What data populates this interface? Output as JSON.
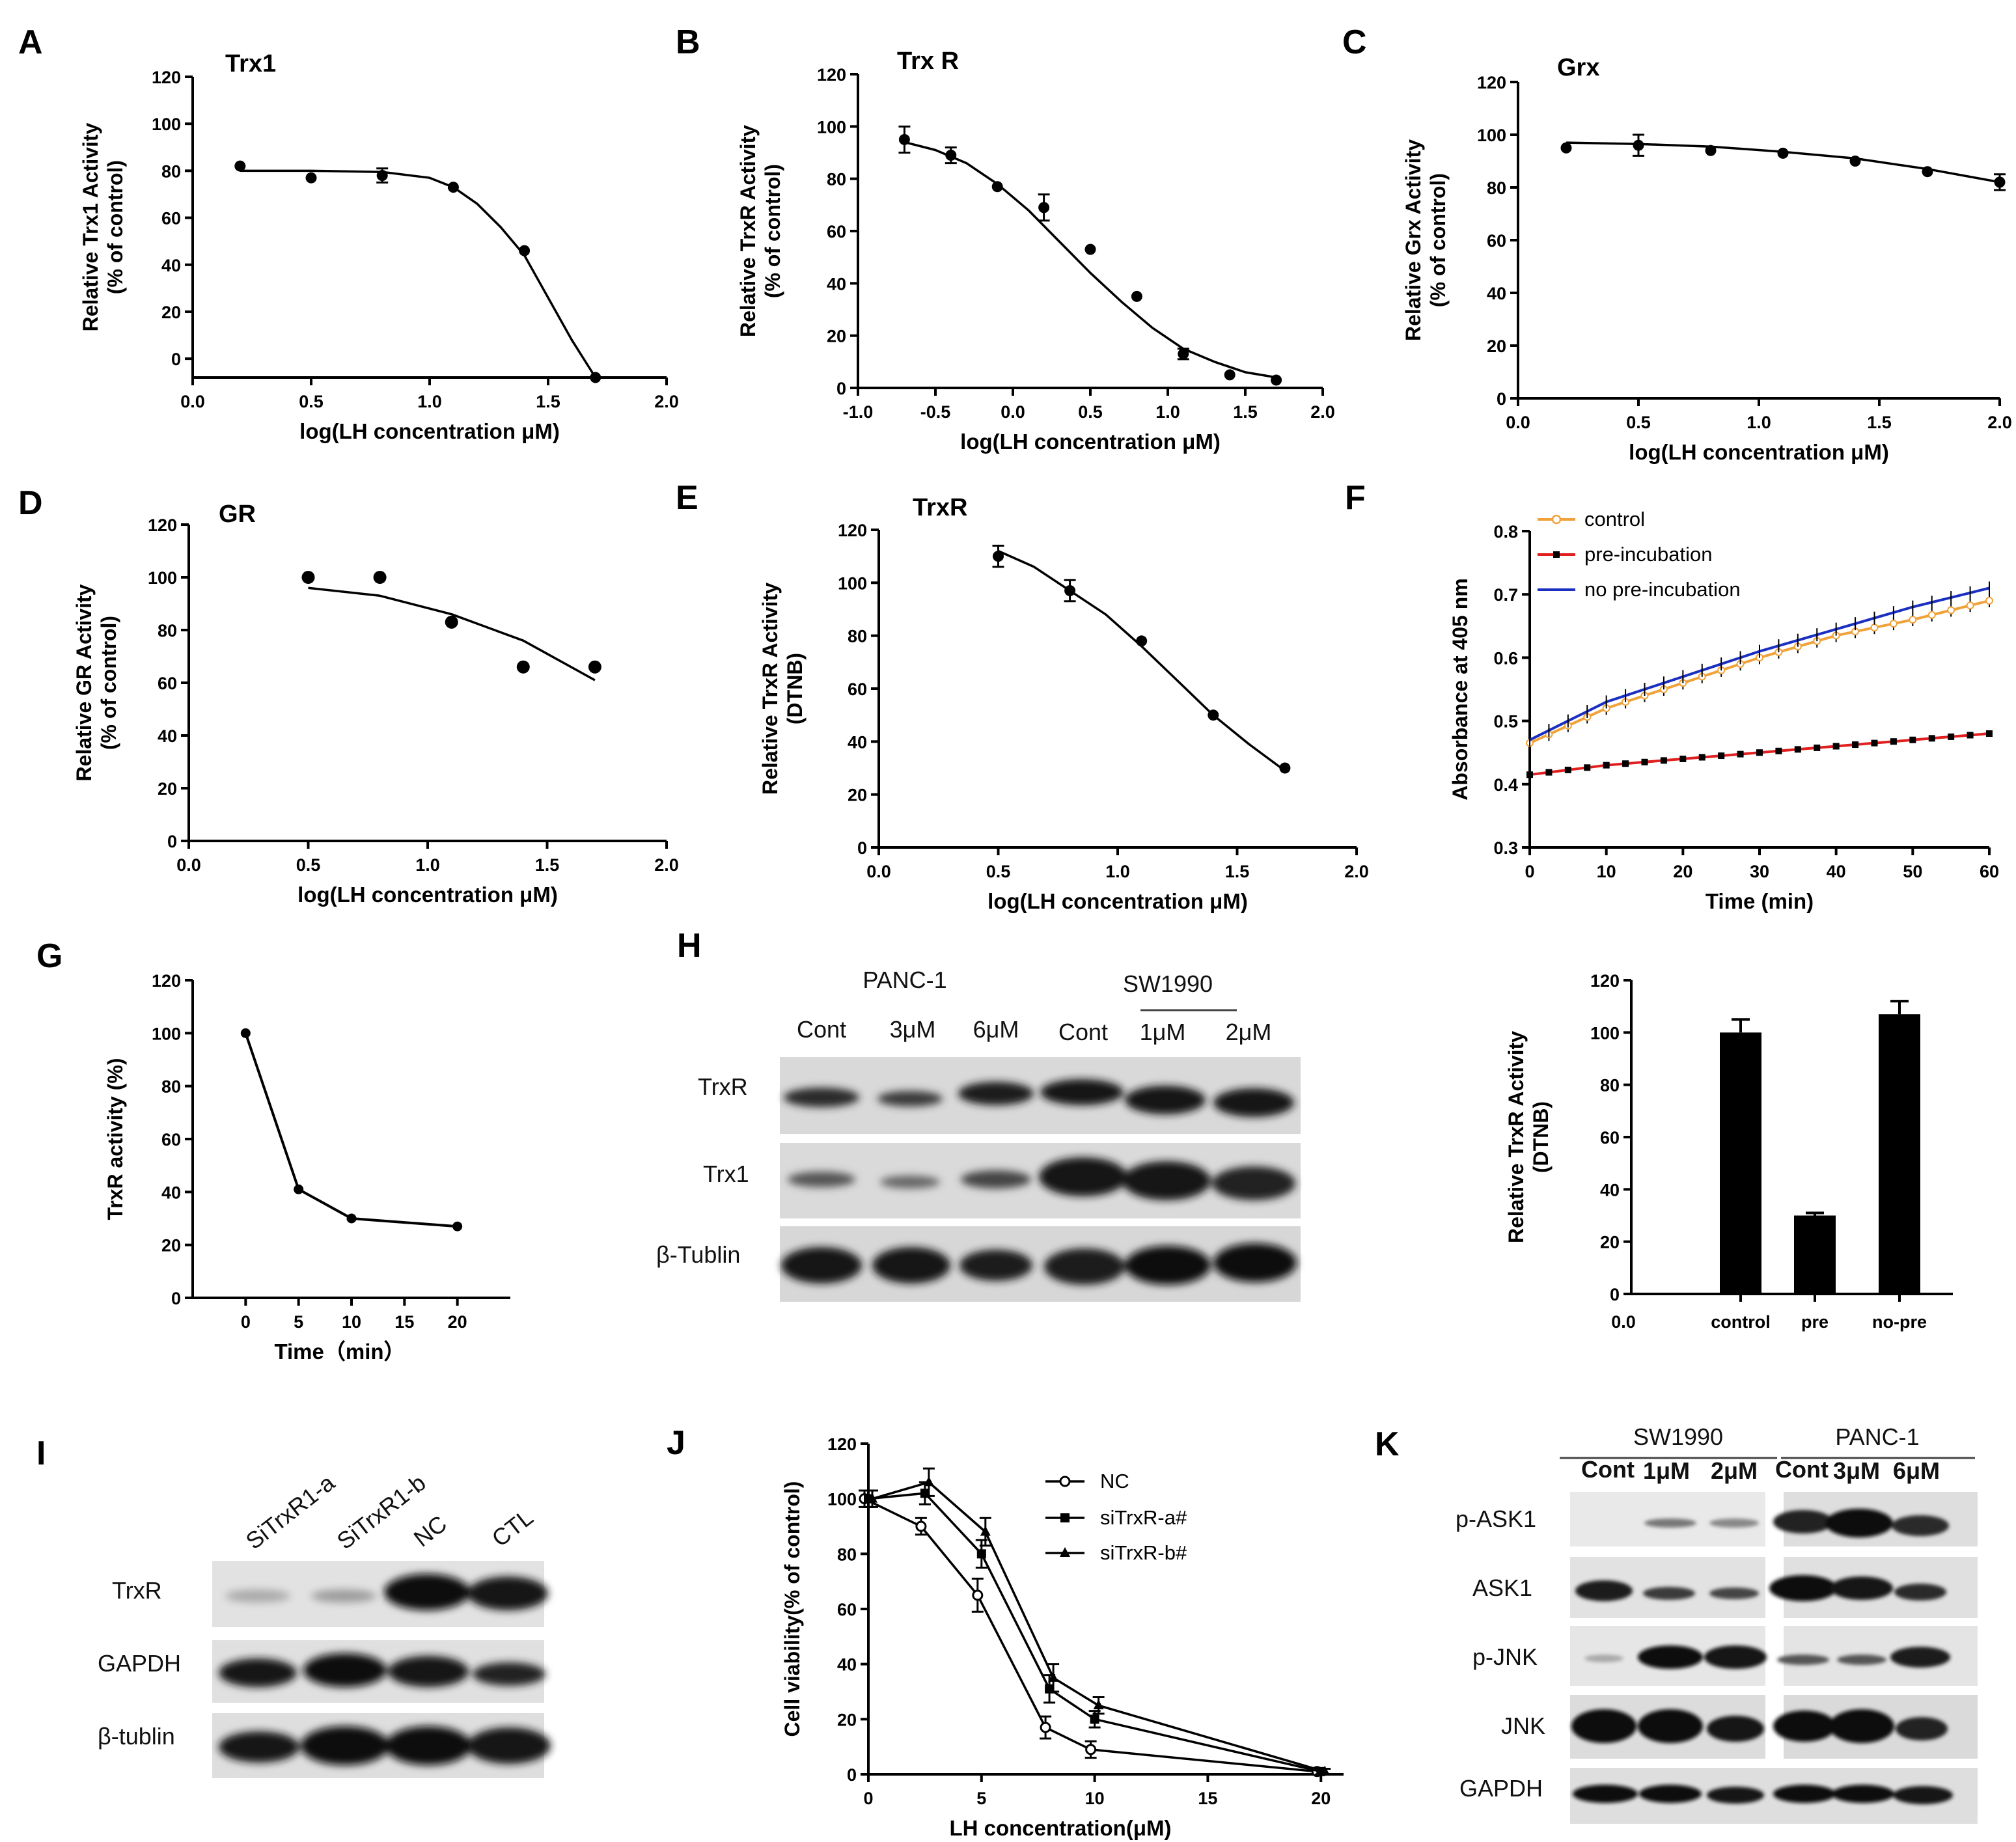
{
  "panel_labels": {
    "A": "A",
    "B": "B",
    "C": "C",
    "D": "D",
    "E": "E",
    "F": "F",
    "G": "G",
    "H": "H",
    "I": "I",
    "J": "J",
    "K": "K"
  },
  "common": {
    "x_log": "log(LH concentration μM)"
  },
  "chart_data": [
    {
      "id": "A",
      "type": "scatter",
      "title": "Trx1",
      "xlabel": "log(LH concentration μM)",
      "ylabel": [
        "Relative Trx1 Activity",
        "(% of control)"
      ],
      "xlim": [
        0,
        2
      ],
      "ylim": [
        -8,
        120
      ],
      "xticks": [
        "0.0",
        "0.5",
        "1.0",
        "1.5",
        "2.0"
      ],
      "yticks": [
        "0",
        "20",
        "40",
        "60",
        "80",
        "100",
        "120"
      ],
      "x": [
        0.2,
        0.5,
        0.8,
        1.1,
        1.4,
        1.7
      ],
      "y": [
        82,
        77,
        78,
        73,
        46,
        -8
      ],
      "err": [
        0,
        0,
        3,
        0,
        0,
        0
      ],
      "fit": [
        [
          0.2,
          80
        ],
        [
          0.5,
          80
        ],
        [
          0.8,
          79.5
        ],
        [
          1.0,
          77
        ],
        [
          1.1,
          73
        ],
        [
          1.2,
          66
        ],
        [
          1.3,
          56
        ],
        [
          1.4,
          44
        ],
        [
          1.5,
          26
        ],
        [
          1.6,
          8
        ],
        [
          1.7,
          -8
        ]
      ]
    },
    {
      "id": "B",
      "type": "scatter",
      "title": "Trx R",
      "xlabel": "log(LH concentration μM)",
      "ylabel": [
        "Relative TrxR Activity",
        "(% of control)"
      ],
      "xlim": [
        -1,
        2
      ],
      "ylim": [
        0,
        120
      ],
      "xticks": [
        "-1.0",
        "-0.5",
        "0.0",
        "0.5",
        "1.0",
        "1.5",
        "2.0"
      ],
      "yticks": [
        "0",
        "20",
        "40",
        "60",
        "80",
        "100",
        "120"
      ],
      "x": [
        -0.7,
        -0.4,
        -0.1,
        0.2,
        0.5,
        0.8,
        1.1,
        1.4,
        1.7
      ],
      "y": [
        95,
        89,
        77,
        69,
        53,
        35,
        13,
        5,
        3
      ],
      "err": [
        5,
        3,
        0,
        5,
        0,
        0,
        2,
        0,
        0
      ],
      "fit": [
        [
          -0.7,
          94
        ],
        [
          -0.5,
          91
        ],
        [
          -0.3,
          86
        ],
        [
          -0.1,
          78
        ],
        [
          0.1,
          68
        ],
        [
          0.3,
          56
        ],
        [
          0.5,
          44
        ],
        [
          0.7,
          33
        ],
        [
          0.9,
          23
        ],
        [
          1.1,
          15
        ],
        [
          1.3,
          10
        ],
        [
          1.5,
          6
        ],
        [
          1.7,
          4
        ]
      ]
    },
    {
      "id": "C",
      "type": "scatter",
      "title": "Grx",
      "xlabel": "log(LH concentration μM)",
      "ylabel": [
        "Relative Grx Activity",
        "(% of control)"
      ],
      "xlim": [
        0,
        2
      ],
      "ylim": [
        0,
        120
      ],
      "xticks": [
        "0.0",
        "0.5",
        "1.0",
        "1.5",
        "2.0"
      ],
      "yticks": [
        "0",
        "20",
        "40",
        "60",
        "80",
        "100",
        "120"
      ],
      "x": [
        0.2,
        0.5,
        0.8,
        1.1,
        1.4,
        1.7,
        2.0
      ],
      "y": [
        95,
        96,
        94,
        93,
        90,
        86,
        82
      ],
      "err": [
        0,
        4,
        0,
        0,
        0,
        0,
        3
      ],
      "fit": [
        [
          0.2,
          97
        ],
        [
          0.5,
          96.5
        ],
        [
          0.8,
          95.5
        ],
        [
          1.1,
          93.5
        ],
        [
          1.4,
          91
        ],
        [
          1.7,
          87
        ],
        [
          2.0,
          82
        ]
      ]
    },
    {
      "id": "D",
      "type": "scatter",
      "title": "GR",
      "xlabel": "log(LH concentration μM)",
      "ylabel": [
        "Relative GR Activity",
        "(% of control)"
      ],
      "xlim": [
        0,
        2
      ],
      "ylim": [
        0,
        120
      ],
      "xticks": [
        "0.0",
        "0.5",
        "1.0",
        "1.5",
        "2.0"
      ],
      "yticks": [
        "0",
        "20",
        "40",
        "60",
        "80",
        "100",
        "120"
      ],
      "x": [
        0.5,
        0.8,
        1.1,
        1.4,
        1.7
      ],
      "y": [
        100,
        100,
        83,
        66,
        66
      ],
      "err": [
        0,
        0,
        0,
        0,
        0
      ],
      "fit": [
        [
          0.5,
          96
        ],
        [
          0.8,
          93
        ],
        [
          1.1,
          86
        ],
        [
          1.4,
          76
        ],
        [
          1.7,
          61
        ]
      ]
    },
    {
      "id": "E",
      "type": "scatter",
      "title": "TrxR",
      "xlabel": "log(LH concentration μM)",
      "ylabel": [
        "Relative TrxR Activity",
        "(DTNB)"
      ],
      "xlim": [
        0,
        2
      ],
      "ylim": [
        0,
        120
      ],
      "xticks": [
        "0.0",
        "0.5",
        "1.0",
        "1.5",
        "2.0"
      ],
      "yticks": [
        "0",
        "20",
        "40",
        "60",
        "80",
        "100",
        "120"
      ],
      "x": [
        0.5,
        0.8,
        1.1,
        1.4,
        1.7
      ],
      "y": [
        110,
        97,
        78,
        50,
        30
      ],
      "err": [
        4,
        4,
        0,
        0,
        0
      ],
      "fit": [
        [
          0.5,
          112
        ],
        [
          0.65,
          106
        ],
        [
          0.8,
          97
        ],
        [
          0.95,
          88
        ],
        [
          1.1,
          76
        ],
        [
          1.25,
          63
        ],
        [
          1.4,
          50
        ],
        [
          1.55,
          39
        ],
        [
          1.7,
          29
        ]
      ]
    },
    {
      "id": "F",
      "type": "line",
      "xlabel": "Time (min)",
      "ylabel": "Absorbance at 405 nm",
      "xlim": [
        0,
        60
      ],
      "ylim": [
        0.3,
        0.8
      ],
      "xticks": [
        "0",
        "10",
        "20",
        "30",
        "40",
        "50",
        "60"
      ],
      "yticks": [
        "0.3",
        "0.4",
        "0.5",
        "0.6",
        "0.7",
        "0.8"
      ],
      "series": [
        {
          "name": "control",
          "color": "#f0a23a",
          "x": [
            0,
            10,
            20,
            30,
            40,
            50,
            60
          ],
          "y": [
            0.465,
            0.52,
            0.56,
            0.6,
            0.635,
            0.66,
            0.69
          ]
        },
        {
          "name": "pre-incubation",
          "color": "#e02020",
          "x": [
            0,
            10,
            20,
            30,
            40,
            50,
            60
          ],
          "y": [
            0.415,
            0.43,
            0.44,
            0.45,
            0.46,
            0.47,
            0.48
          ]
        },
        {
          "name": "no pre-incubation",
          "color": "#1a2fc0",
          "x": [
            0,
            10,
            20,
            30,
            40,
            50,
            60
          ],
          "y": [
            0.47,
            0.53,
            0.57,
            0.61,
            0.645,
            0.68,
            0.71
          ]
        }
      ]
    },
    {
      "id": "G",
      "type": "line",
      "xlabel": "Time（min）",
      "ylabel": "TrxR activity (%)",
      "xlim": [
        -5,
        25
      ],
      "ylim": [
        0,
        120
      ],
      "xticks": [
        "0",
        "5",
        "10",
        "15",
        "20"
      ],
      "yticks": [
        "0",
        "20",
        "40",
        "60",
        "80",
        "100",
        "120"
      ],
      "x": [
        0,
        5,
        10,
        20
      ],
      "y": [
        100,
        41,
        30,
        27
      ]
    },
    {
      "id": "H2",
      "type": "bar",
      "ylabel": [
        "Relative TrxR Activity",
        "(DTNB)"
      ],
      "categories": [
        "control",
        "pre",
        "no-pre"
      ],
      "values": [
        100,
        30,
        107
      ],
      "err": [
        5,
        1,
        5
      ],
      "ylim": [
        0,
        120
      ],
      "yticks": [
        "0",
        "20",
        "40",
        "60",
        "80",
        "100",
        "120"
      ],
      "x0label": "0.0"
    },
    {
      "id": "J",
      "type": "line",
      "xlabel": "LH concentration(μM)",
      "ylabel": "Cell viability(% of control)",
      "xlim": [
        0,
        21
      ],
      "ylim": [
        0,
        120
      ],
      "xticks": [
        "0",
        "5",
        "10",
        "15",
        "20"
      ],
      "yticks": [
        "0",
        "20",
        "40",
        "60",
        "80",
        "100",
        "120"
      ],
      "series": [
        {
          "name": "NC",
          "marker": "circle",
          "x": [
            0,
            2.5,
            5,
            8,
            10,
            20
          ],
          "y": [
            100,
            90,
            65,
            17,
            9,
            1
          ],
          "err": [
            3,
            3,
            6,
            4,
            3,
            1
          ]
        },
        {
          "name": "siTrxR-a#",
          "marker": "square",
          "x": [
            0,
            2.5,
            5,
            8,
            10,
            20
          ],
          "y": [
            100,
            102,
            80,
            31,
            20,
            1
          ],
          "err": [
            3,
            4,
            5,
            5,
            3,
            1
          ]
        },
        {
          "name": "siTrxR-b#",
          "marker": "triangle",
          "x": [
            0,
            2.5,
            5,
            8,
            10,
            20
          ],
          "y": [
            100,
            106,
            88,
            35,
            25,
            1
          ],
          "err": [
            3,
            5,
            5,
            5,
            3,
            1
          ]
        }
      ]
    }
  ],
  "blots": {
    "H": {
      "group1": "PANC-1",
      "group2": "SW1990",
      "lanes": [
        "Cont",
        "3μM",
        "6μM",
        "Cont",
        "1μM",
        "2μM"
      ],
      "rows": [
        "TrxR",
        "Trx1",
        "β-Tublin"
      ]
    },
    "I": {
      "lanes": [
        "SiTrxR1-a",
        "SiTrxR1-b",
        "NC",
        "CTL"
      ],
      "rows": [
        "TrxR",
        "GAPDH",
        "β-tublin"
      ]
    },
    "K": {
      "group1": "SW1990",
      "group2": "PANC-1",
      "lanes": [
        "Cont",
        "1μM",
        "2μM",
        "Cont",
        "3μM",
        "6μM"
      ],
      "rows": [
        "p-ASK1",
        "ASK1",
        "p-JNK",
        "JNK",
        "GAPDH"
      ]
    }
  }
}
